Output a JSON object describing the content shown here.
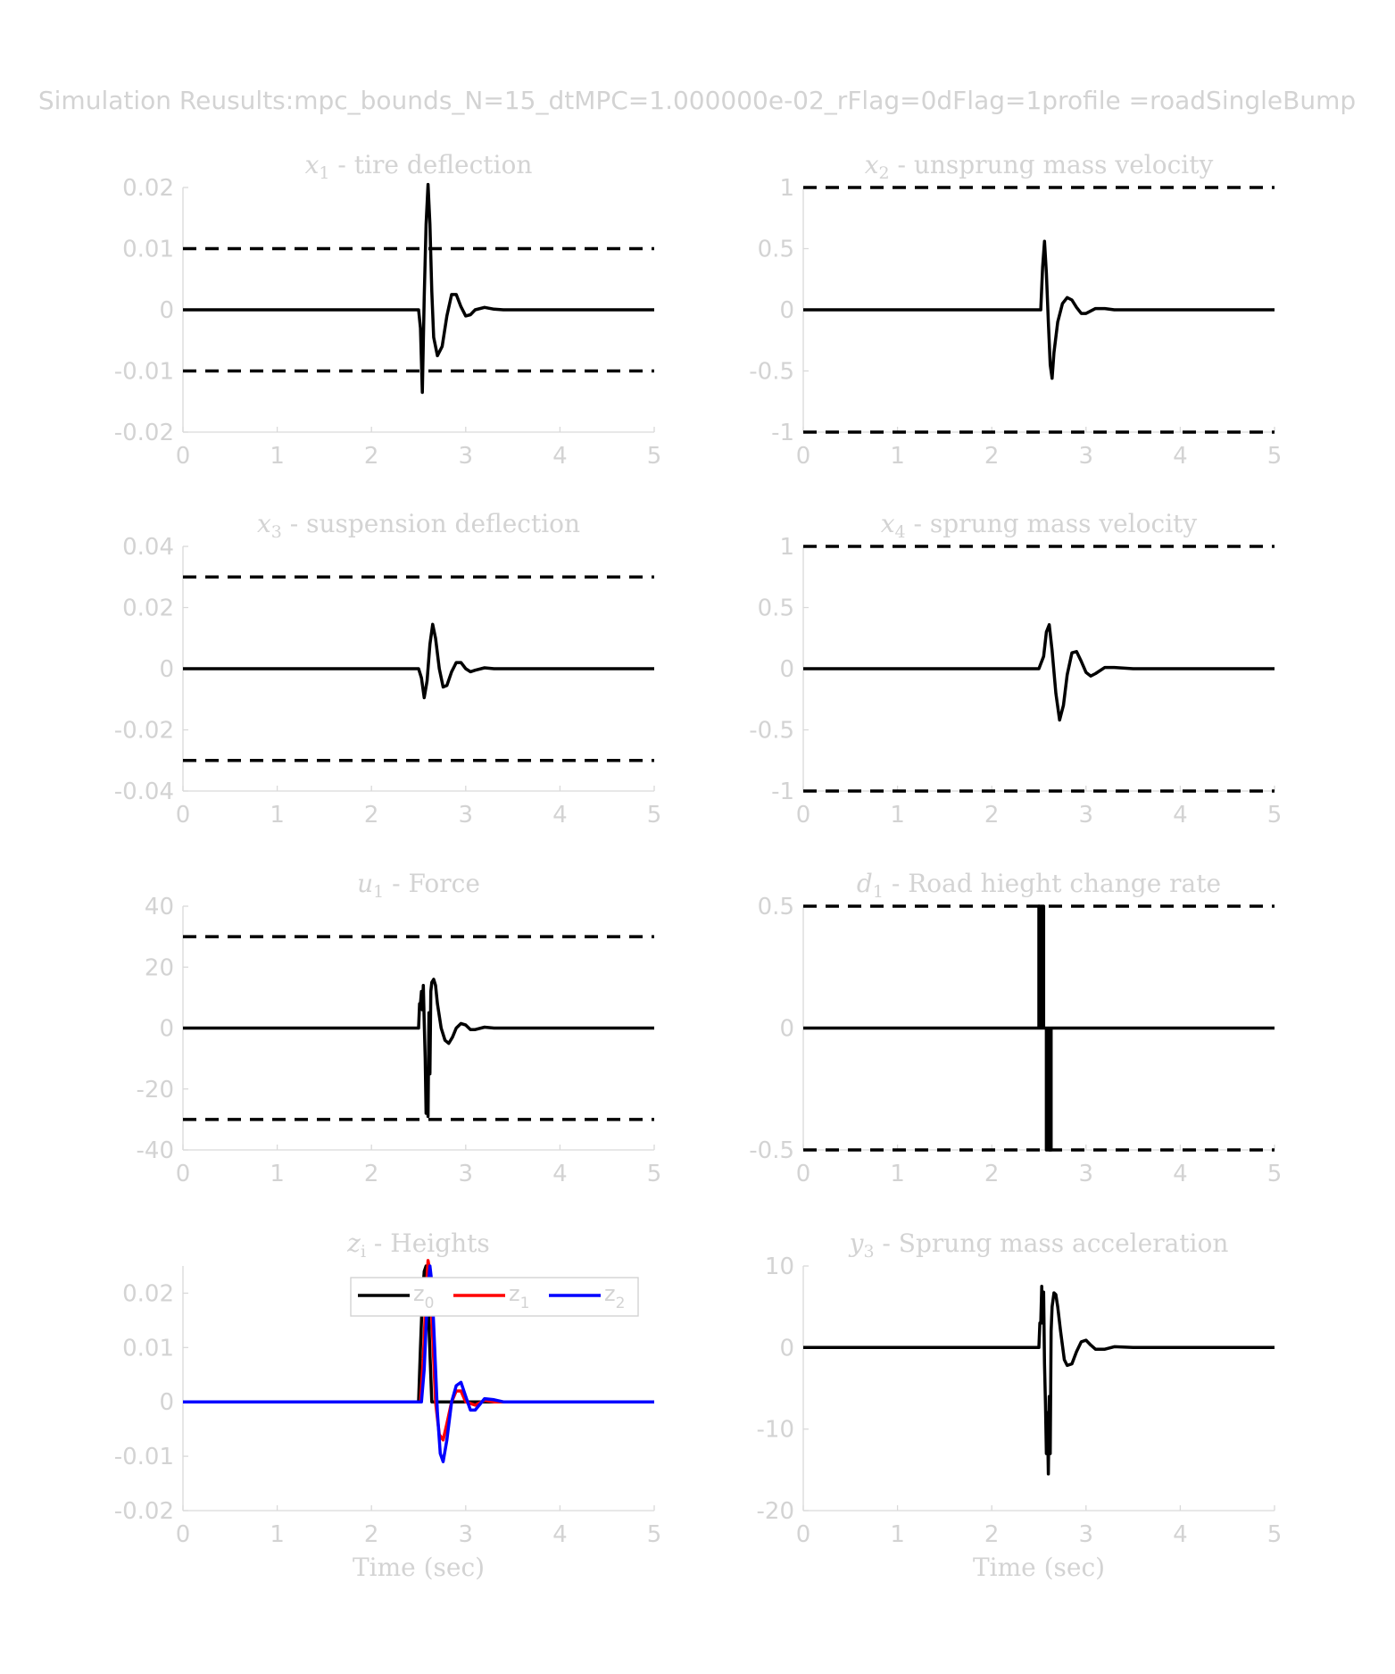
{
  "figure": {
    "title": "Simulation Reusults:mpc_bounds_N=15_dtMPC=1.000000e-02_rFlag=0dFlag=1profile =roadSingleBump"
  },
  "colors": {
    "line": "#000000",
    "z0": "#000000",
    "z1": "#ff0000",
    "z2": "#0000ff",
    "text": "#d3d3d3"
  },
  "chart_data": [
    {
      "id": "x1",
      "type": "line",
      "title_symbol": "x",
      "title_sub": "1",
      "title_text": " - tire deflection",
      "xlabel": "",
      "ylabel": "",
      "xlim": [
        0,
        5
      ],
      "ylim": [
        -0.02,
        0.02
      ],
      "xticks": [
        "0",
        "1",
        "2",
        "3",
        "4",
        "5"
      ],
      "yticks": [
        "-0.02",
        "-0.01",
        "0",
        "0.01",
        "0.02"
      ],
      "bounds": [
        0.01,
        -0.01
      ],
      "series": [
        {
          "color": "#000000",
          "x": [
            0,
            2.5,
            2.52,
            2.54,
            2.56,
            2.58,
            2.6,
            2.62,
            2.64,
            2.66,
            2.7,
            2.75,
            2.8,
            2.85,
            2.9,
            2.95,
            3.0,
            3.05,
            3.1,
            3.2,
            3.3,
            3.4,
            3.6,
            5
          ],
          "y": [
            0,
            0,
            -0.003,
            -0.0135,
            0.002,
            0.014,
            0.0205,
            0.014,
            0.003,
            -0.0045,
            -0.0075,
            -0.006,
            -0.001,
            0.0025,
            0.0025,
            0.0005,
            -0.001,
            -0.0008,
            0,
            0.0004,
            0.0001,
            0,
            0,
            0
          ]
        }
      ]
    },
    {
      "id": "x2",
      "type": "line",
      "title_symbol": "x",
      "title_sub": "2",
      "title_text": " - unsprung mass velocity",
      "xlabel": "",
      "ylabel": "",
      "xlim": [
        0,
        5
      ],
      "ylim": [
        -1,
        1
      ],
      "xticks": [
        "0",
        "1",
        "2",
        "3",
        "4",
        "5"
      ],
      "yticks": [
        "-1",
        "-0.5",
        "0",
        "0.5",
        "1"
      ],
      "bounds": [
        1,
        -1
      ],
      "series": [
        {
          "color": "#000000",
          "x": [
            0,
            2.52,
            2.54,
            2.56,
            2.58,
            2.6,
            2.62,
            2.64,
            2.66,
            2.7,
            2.75,
            2.8,
            2.85,
            2.9,
            2.95,
            3.0,
            3.1,
            3.2,
            3.3,
            5
          ],
          "y": [
            0,
            0,
            0.35,
            0.56,
            0.3,
            -0.1,
            -0.45,
            -0.56,
            -0.35,
            -0.1,
            0.05,
            0.1,
            0.08,
            0.02,
            -0.03,
            -0.03,
            0.01,
            0.01,
            0,
            0
          ]
        }
      ]
    },
    {
      "id": "x3",
      "type": "line",
      "title_symbol": "x",
      "title_sub": "3",
      "title_text": " - suspension deflection",
      "xlabel": "",
      "ylabel": "",
      "xlim": [
        0,
        5
      ],
      "ylim": [
        -0.04,
        0.04
      ],
      "xticks": [
        "0",
        "1",
        "2",
        "3",
        "4",
        "5"
      ],
      "yticks": [
        "-0.04",
        "-0.02",
        "0",
        "0.02",
        "0.04"
      ],
      "bounds": [
        0.03,
        -0.03
      ],
      "series": [
        {
          "color": "#000000",
          "x": [
            0,
            2.5,
            2.53,
            2.56,
            2.59,
            2.62,
            2.65,
            2.68,
            2.72,
            2.76,
            2.8,
            2.85,
            2.9,
            2.95,
            3.0,
            3.05,
            3.1,
            3.2,
            3.3,
            3.4,
            5
          ],
          "y": [
            0,
            0,
            -0.003,
            -0.0095,
            -0.004,
            0.008,
            0.0145,
            0.01,
            0,
            -0.006,
            -0.0055,
            -0.001,
            0.002,
            0.002,
            0,
            -0.001,
            -0.0005,
            0.0003,
            0,
            0,
            0
          ]
        }
      ]
    },
    {
      "id": "x4",
      "type": "line",
      "title_symbol": "x",
      "title_sub": "4",
      "title_text": " - sprung mass velocity",
      "xlabel": "",
      "ylabel": "",
      "xlim": [
        0,
        5
      ],
      "ylim": [
        -1,
        1
      ],
      "xticks": [
        "0",
        "1",
        "2",
        "3",
        "4",
        "5"
      ],
      "yticks": [
        "-1",
        "-0.5",
        "0",
        "0.5",
        "1"
      ],
      "bounds": [
        1,
        -1
      ],
      "series": [
        {
          "color": "#000000",
          "x": [
            0,
            2.5,
            2.55,
            2.58,
            2.61,
            2.64,
            2.68,
            2.72,
            2.76,
            2.8,
            2.85,
            2.9,
            2.95,
            3.0,
            3.05,
            3.1,
            3.2,
            3.3,
            3.5,
            5
          ],
          "y": [
            0,
            0,
            0.1,
            0.3,
            0.36,
            0.15,
            -0.2,
            -0.42,
            -0.3,
            -0.05,
            0.13,
            0.14,
            0.06,
            -0.03,
            -0.06,
            -0.04,
            0.01,
            0.01,
            0,
            0
          ]
        }
      ]
    },
    {
      "id": "u1",
      "type": "line",
      "title_symbol": "u",
      "title_sub": "1",
      "title_text": " - Force",
      "xlabel": "",
      "ylabel": "",
      "xlim": [
        0,
        5
      ],
      "ylim": [
        -40,
        40
      ],
      "xticks": [
        "0",
        "1",
        "2",
        "3",
        "4",
        "5"
      ],
      "yticks": [
        "-40",
        "-20",
        "0",
        "20",
        "40"
      ],
      "bounds": [
        30,
        -30
      ],
      "series": [
        {
          "color": "#000000",
          "x": [
            0,
            2.5,
            2.51,
            2.52,
            2.53,
            2.54,
            2.55,
            2.56,
            2.57,
            2.58,
            2.59,
            2.6,
            2.61,
            2.62,
            2.63,
            2.64,
            2.66,
            2.68,
            2.7,
            2.74,
            2.78,
            2.82,
            2.86,
            2.9,
            2.95,
            3.0,
            3.05,
            3.1,
            3.2,
            3.3,
            3.5,
            5
          ],
          "y": [
            0,
            0,
            8,
            8,
            12,
            6,
            14,
            2,
            -10,
            -28,
            -20,
            -29,
            5,
            -15,
            12,
            15,
            16,
            14,
            8,
            0,
            -4,
            -5,
            -3,
            0,
            1.5,
            1,
            -0.5,
            -0.5,
            0.3,
            0,
            0,
            0
          ]
        }
      ]
    },
    {
      "id": "d1",
      "type": "line",
      "title_symbol": "d",
      "title_sub": "1",
      "title_text": " - Road hieght change rate",
      "xlabel": "",
      "ylabel": "",
      "xlim": [
        0,
        5
      ],
      "ylim": [
        -0.5,
        0.5
      ],
      "xticks": [
        "0",
        "1",
        "2",
        "3",
        "4",
        "5"
      ],
      "yticks": [
        "-0.5",
        "0",
        "0.5"
      ],
      "bounds": [
        0.5,
        -0.5
      ],
      "series": [
        {
          "color": "#000000",
          "x": [
            0,
            2.5,
            2.5,
            2.51,
            2.51,
            2.52,
            2.52,
            2.53,
            2.53,
            2.54,
            2.54,
            2.55,
            2.55,
            2.58,
            2.58,
            2.59,
            2.59,
            2.6,
            2.6,
            2.61,
            2.61,
            2.62,
            2.62,
            2.63,
            2.63,
            5
          ],
          "y": [
            0,
            0,
            0.5,
            0.5,
            0,
            0,
            0.5,
            0.5,
            0,
            0,
            0.5,
            0.5,
            0,
            0,
            -0.5,
            -0.5,
            0,
            0,
            -0.5,
            -0.5,
            0,
            0,
            -0.5,
            -0.5,
            0,
            0
          ]
        }
      ]
    },
    {
      "id": "zi",
      "type": "line",
      "title_symbol": "z",
      "title_sub": "i",
      "title_text": " - Heights",
      "xlabel": "Time (sec)",
      "ylabel": "",
      "xlim": [
        0,
        5
      ],
      "ylim": [
        -0.02,
        0.025
      ],
      "xticks": [
        "0",
        "1",
        "2",
        "3",
        "4",
        "5"
      ],
      "yticks": [
        "-0.02",
        "-0.01",
        "0",
        "0.01",
        "0.02"
      ],
      "bounds": [],
      "legend": {
        "position": "top-right",
        "entries": [
          {
            "base": "z",
            "sub": "0",
            "color": "#000000"
          },
          {
            "base": "z",
            "sub": "1",
            "color": "#ff0000"
          },
          {
            "base": "z",
            "sub": "2",
            "color": "#0000ff"
          }
        ]
      },
      "series": [
        {
          "name": "z0",
          "color": "#000000",
          "x": [
            0,
            2.5,
            2.52,
            2.54,
            2.56,
            2.58,
            2.6,
            2.62,
            2.64,
            5
          ],
          "y": [
            0,
            0,
            0.01,
            0.019,
            0.024,
            0.025,
            0.019,
            0.009,
            0,
            0
          ]
        },
        {
          "name": "z1",
          "color": "#ff0000",
          "x": [
            0,
            2.52,
            2.55,
            2.58,
            2.6,
            2.62,
            2.65,
            2.68,
            2.72,
            2.76,
            2.8,
            2.85,
            2.9,
            2.95,
            3.0,
            3.1,
            3.2,
            3.3,
            5
          ],
          "y": [
            0,
            0,
            0.008,
            0.02,
            0.026,
            0.024,
            0.012,
            0,
            -0.006,
            -0.007,
            -0.004,
            0,
            0.002,
            0.002,
            0,
            -0.0006,
            0.0003,
            0,
            0
          ]
        },
        {
          "name": "z2",
          "color": "#0000ff",
          "x": [
            0,
            2.53,
            2.56,
            2.59,
            2.62,
            2.64,
            2.67,
            2.7,
            2.73,
            2.76,
            2.8,
            2.85,
            2.9,
            2.95,
            3.0,
            3.05,
            3.1,
            3.2,
            3.3,
            3.4,
            5
          ],
          "y": [
            0,
            0,
            0.006,
            0.018,
            0.025,
            0.022,
            0.01,
            -0.002,
            -0.0095,
            -0.011,
            -0.007,
            0,
            0.003,
            0.0036,
            0.001,
            -0.0015,
            -0.0015,
            0.0006,
            0.0004,
            0,
            0
          ]
        }
      ]
    },
    {
      "id": "y3",
      "type": "line",
      "title_symbol": "y",
      "title_sub": "3",
      "title_text": " - Sprung mass acceleration",
      "xlabel": "Time (sec)",
      "ylabel": "",
      "xlim": [
        0,
        5
      ],
      "ylim": [
        -20,
        10
      ],
      "xticks": [
        "0",
        "1",
        "2",
        "3",
        "4",
        "5"
      ],
      "yticks": [
        "-20",
        "-10",
        "0",
        "10"
      ],
      "bounds": [],
      "series": [
        {
          "color": "#000000",
          "x": [
            0,
            2.5,
            2.51,
            2.52,
            2.53,
            2.54,
            2.55,
            2.56,
            2.57,
            2.58,
            2.59,
            2.6,
            2.61,
            2.62,
            2.63,
            2.64,
            2.66,
            2.68,
            2.7,
            2.73,
            2.77,
            2.8,
            2.85,
            2.9,
            2.95,
            3.0,
            3.05,
            3.1,
            3.2,
            3.3,
            3.5,
            5
          ],
          "y": [
            0,
            0,
            3,
            3,
            7.5,
            3,
            6.8,
            -2,
            -7,
            -13,
            -8,
            -15.5,
            -6,
            -13,
            2,
            5,
            6.7,
            6.5,
            5,
            2,
            -1.5,
            -2.2,
            -2,
            -0.5,
            0.7,
            0.9,
            0.3,
            -0.2,
            -0.2,
            0.1,
            0,
            0
          ]
        }
      ]
    }
  ]
}
